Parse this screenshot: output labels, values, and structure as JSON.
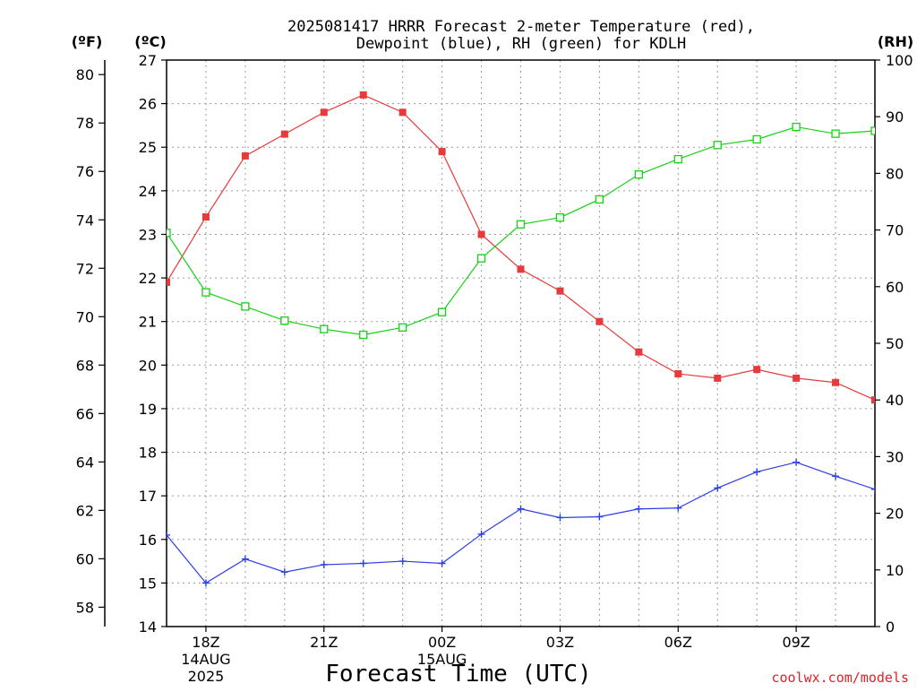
{
  "chart_data": {
    "type": "line",
    "title": [
      "2025081417 HRRR Forecast 2-meter Temperature (red),",
      "Dewpoint (blue), RH (green) for KDLH"
    ],
    "xlabel": "Forecast Time (UTC)",
    "credit": "coolwx.com/models",
    "unit_labels": {
      "f": "(ºF)",
      "c": "(ºC)",
      "rh": "(RH)"
    },
    "x_hours": [
      17,
      18,
      19,
      20,
      21,
      22,
      23,
      24,
      25,
      26,
      27,
      28,
      29,
      30,
      31,
      32,
      33,
      34,
      35
    ],
    "x_ticks": [
      {
        "hour": 18,
        "lines": [
          "18Z",
          "14AUG",
          "2025"
        ]
      },
      {
        "hour": 21,
        "lines": [
          "21Z"
        ]
      },
      {
        "hour": 24,
        "lines": [
          "00Z",
          "15AUG"
        ]
      },
      {
        "hour": 27,
        "lines": [
          "03Z"
        ]
      },
      {
        "hour": 30,
        "lines": [
          "06Z"
        ]
      },
      {
        "hour": 33,
        "lines": [
          "09Z"
        ]
      }
    ],
    "y_celsius": {
      "range": [
        14,
        27
      ],
      "ticks": [
        14,
        15,
        16,
        17,
        18,
        19,
        20,
        21,
        22,
        23,
        24,
        25,
        26,
        27
      ]
    },
    "y_fahrenheit": {
      "ticks": [
        58,
        60,
        62,
        64,
        66,
        68,
        70,
        72,
        74,
        76,
        78,
        80
      ]
    },
    "y_rh": {
      "range": [
        0,
        100
      ],
      "ticks": [
        0,
        10,
        20,
        30,
        40,
        50,
        60,
        70,
        80,
        90,
        100
      ]
    },
    "grid": true,
    "series": [
      {
        "key": "temperature",
        "color": "#e83a3a",
        "marker": "filled-square",
        "axis": "celsius",
        "values": [
          21.9,
          23.4,
          24.8,
          25.3,
          25.8,
          26.2,
          25.8,
          24.9,
          23.0,
          22.2,
          21.7,
          21.0,
          20.3,
          19.8,
          19.7,
          19.9,
          19.7,
          19.6,
          19.2
        ]
      },
      {
        "key": "dewpoint",
        "color": "#2a3ee8",
        "marker": "plus",
        "axis": "celsius",
        "values": [
          16.1,
          15.0,
          15.55,
          15.25,
          15.42,
          15.45,
          15.5,
          15.45,
          16.12,
          16.7,
          16.5,
          16.52,
          16.7,
          16.72,
          17.18,
          17.55,
          17.77,
          17.45,
          17.15
        ]
      },
      {
        "key": "rh",
        "color": "#16d116",
        "marker": "open-square",
        "axis": "rh",
        "values": [
          69.5,
          59,
          56.5,
          54,
          52.5,
          51.5,
          52.8,
          55.5,
          65,
          71,
          72.2,
          75.4,
          79.8,
          82.5,
          85,
          86,
          88.2,
          87,
          87.5
        ]
      }
    ]
  }
}
